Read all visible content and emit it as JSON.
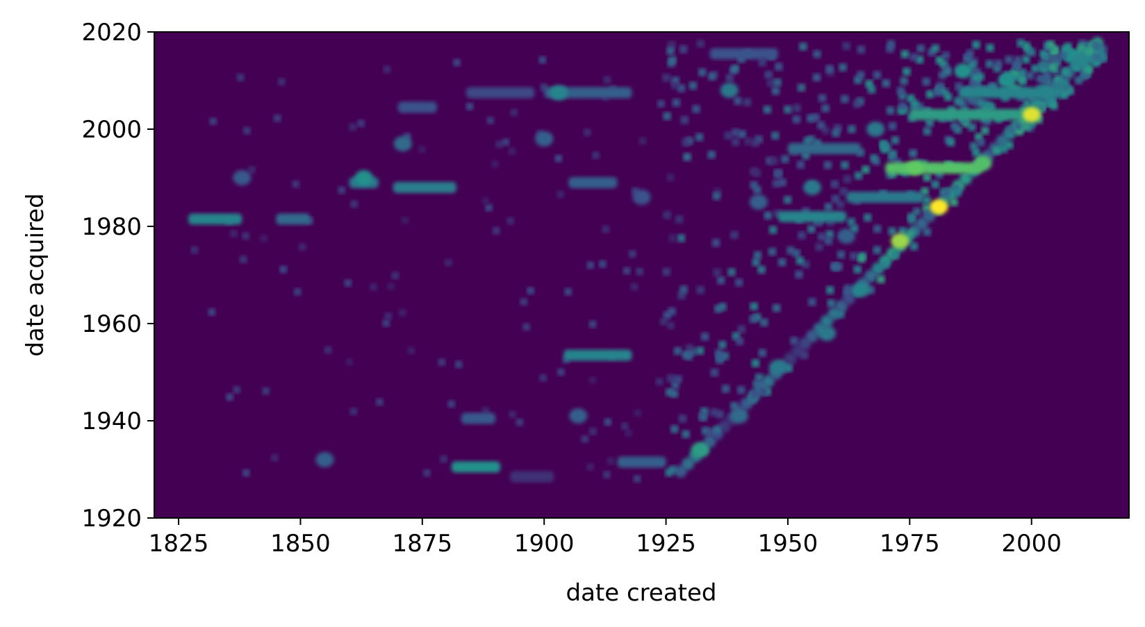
{
  "chart_data": {
    "type": "heatmap",
    "title": "",
    "xlabel": "date created",
    "ylabel": "date acquired",
    "xlim": [
      1820,
      2020
    ],
    "ylim": [
      1920,
      2020
    ],
    "x_ticks": [
      1825,
      1850,
      1875,
      1900,
      1925,
      1950,
      1975,
      2000
    ],
    "y_ticks": [
      1920,
      1940,
      1960,
      1980,
      2000,
      2020
    ],
    "colormap": "viridis",
    "background_color": "#440154",
    "grid": false,
    "legend": "none",
    "density_streaks": [
      {
        "x0": 1827,
        "x1": 1838,
        "y": 1981.5,
        "value": 0.45
      },
      {
        "x0": 1845,
        "x1": 1852,
        "y": 1981.5,
        "value": 0.35
      },
      {
        "x0": 1860,
        "x1": 1866,
        "y": 1989,
        "value": 0.4
      },
      {
        "x0": 1869,
        "x1": 1882,
        "y": 1988,
        "value": 0.42
      },
      {
        "x0": 1870,
        "x1": 1878,
        "y": 2004.5,
        "value": 0.25
      },
      {
        "x0": 1884,
        "x1": 1898,
        "y": 2007.5,
        "value": 0.22
      },
      {
        "x0": 1900,
        "x1": 1918,
        "y": 2007.5,
        "value": 0.3
      },
      {
        "x0": 1934,
        "x1": 1948,
        "y": 2015.5,
        "value": 0.25
      },
      {
        "x0": 1904,
        "x1": 1918,
        "y": 1953.5,
        "value": 0.45
      },
      {
        "x0": 1881,
        "x1": 1891,
        "y": 1930.5,
        "value": 0.5
      },
      {
        "x0": 1883,
        "x1": 1890,
        "y": 1940.5,
        "value": 0.28
      },
      {
        "x0": 1915,
        "x1": 1925,
        "y": 1931.5,
        "value": 0.3
      },
      {
        "x0": 1893,
        "x1": 1902,
        "y": 1928.5,
        "value": 0.15
      },
      {
        "x0": 1905,
        "x1": 1915,
        "y": 1989,
        "value": 0.3
      },
      {
        "x0": 1950,
        "x1": 1965,
        "y": 1996,
        "value": 0.35
      },
      {
        "x0": 1948,
        "x1": 1962,
        "y": 1982,
        "value": 0.45
      },
      {
        "x0": 1970,
        "x1": 1990,
        "y": 1992,
        "value": 0.72
      },
      {
        "x0": 1975,
        "x1": 2002,
        "y": 2003,
        "value": 0.55
      },
      {
        "x0": 1985,
        "x1": 2005,
        "y": 2007.5,
        "value": 0.45
      },
      {
        "x0": 1962,
        "x1": 1978,
        "y": 1986,
        "value": 0.4
      }
    ],
    "density_hotspots": [
      {
        "x": 2000,
        "y": 2003,
        "value": 0.95
      },
      {
        "x": 1981,
        "y": 1984,
        "value": 1.0
      },
      {
        "x": 1973,
        "y": 1977,
        "value": 0.85
      },
      {
        "x": 1990,
        "y": 1993,
        "value": 0.7
      },
      {
        "x": 1976,
        "y": 1992,
        "value": 0.75
      },
      {
        "x": 1932,
        "y": 1934,
        "value": 0.55
      },
      {
        "x": 1863,
        "y": 1990,
        "value": 0.5
      },
      {
        "x": 1903,
        "y": 2007.5,
        "value": 0.45
      },
      {
        "x": 1871,
        "y": 1997,
        "value": 0.35
      },
      {
        "x": 1900,
        "y": 1998,
        "value": 0.3
      },
      {
        "x": 1938,
        "y": 2008,
        "value": 0.4
      },
      {
        "x": 1958,
        "y": 1958,
        "value": 0.4
      },
      {
        "x": 1948,
        "y": 1951,
        "value": 0.4
      },
      {
        "x": 1965,
        "y": 1967,
        "value": 0.45
      },
      {
        "x": 1995,
        "y": 2010,
        "value": 0.5
      },
      {
        "x": 2010,
        "y": 2014,
        "value": 0.45
      },
      {
        "x": 1940,
        "y": 1941,
        "value": 0.35
      },
      {
        "x": 1855,
        "y": 1932,
        "value": 0.3
      },
      {
        "x": 1838,
        "y": 1990,
        "value": 0.28
      },
      {
        "x": 1907,
        "y": 1941,
        "value": 0.3
      },
      {
        "x": 1962,
        "y": 1978,
        "value": 0.3
      },
      {
        "x": 1955,
        "y": 1988,
        "value": 0.4
      },
      {
        "x": 1944,
        "y": 1985,
        "value": 0.3
      },
      {
        "x": 1920,
        "y": 1986,
        "value": 0.25
      },
      {
        "x": 1986,
        "y": 2012,
        "value": 0.5
      },
      {
        "x": 1968,
        "y": 2000,
        "value": 0.4
      }
    ]
  }
}
